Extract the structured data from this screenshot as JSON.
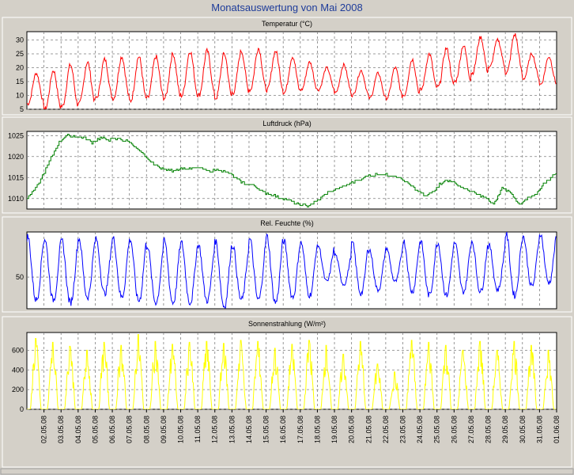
{
  "title": "Monatsauswertung von Mai 2008",
  "colors": {
    "background": "#d4d0c8",
    "plot_area": "#ffffff",
    "title": "#1e3c9a",
    "grid": "#7f7f7f",
    "temperature": "#ff0000",
    "pressure": "#008000",
    "humidity": "#0000ff",
    "radiation": "#ffff00"
  },
  "x_axis": {
    "tick_labels": [
      "02.05.08",
      "03.05.08",
      "04.05.08",
      "05.05.08",
      "06.05.08",
      "07.05.08",
      "08.05.08",
      "09.05.08",
      "10.05.08",
      "11.05.08",
      "12.05.08",
      "13.05.08",
      "14.05.08",
      "15.05.08",
      "16.05.08",
      "17.05.08",
      "18.05.08",
      "19.05.08",
      "20.05.08",
      "21.05.08",
      "22.05.08",
      "23.05.08",
      "24.05.08",
      "25.05.08",
      "26.05.08",
      "27.05.08",
      "28.05.08",
      "29.05.08",
      "30.05.08",
      "31.05.08",
      "01.06.08"
    ]
  },
  "chart_data": [
    {
      "type": "line",
      "title": "Temperatur (°C)",
      "x_unit": "days",
      "y_ticks": [
        5,
        10,
        15,
        20,
        25,
        30
      ],
      "ylim": [
        5,
        33
      ],
      "grid": true,
      "daily_min": [
        7,
        5,
        6,
        7,
        9,
        9,
        8,
        9,
        9,
        10,
        10,
        9,
        11,
        12,
        12,
        11,
        12,
        12,
        11,
        10,
        9,
        9,
        10,
        12,
        13,
        15,
        18,
        20,
        18,
        16,
        14
      ],
      "daily_max": [
        18,
        19,
        21,
        22,
        23,
        24,
        24,
        24,
        25,
        26,
        26,
        25,
        26,
        27,
        26,
        24,
        22,
        20,
        21,
        19,
        18,
        20,
        23,
        25,
        27,
        28,
        31,
        30,
        32,
        25,
        24
      ],
      "series": [
        {
          "name": "Temperatur",
          "color": "#ff0000"
        }
      ]
    },
    {
      "type": "line",
      "title": "Luftdruck (hPa)",
      "x_unit": "days",
      "y_ticks": [
        1010,
        1015,
        1020,
        1025
      ],
      "ylim": [
        1007.5,
        1026
      ],
      "grid": true,
      "x": [
        0,
        0.6,
        1.2,
        1.8,
        2.3,
        2.8,
        3.3,
        3.8,
        4.3,
        4.8,
        5.4,
        6.0,
        6.4,
        7.0,
        7.5,
        8.0,
        8.5,
        9.0,
        9.5,
        10.0,
        10.6,
        11.2,
        11.8,
        12.4,
        12.8,
        13.4,
        13.8,
        14.3,
        14.8,
        15.4,
        15.9,
        16.4,
        17.0,
        17.6,
        18.3,
        18.8,
        19.4,
        20.0,
        20.6,
        21.2,
        21.7,
        22.3,
        22.8,
        23.3,
        23.8,
        24.3,
        24.8,
        25.3,
        25.8,
        26.3,
        26.8,
        27.3,
        27.8,
        28.3,
        28.8,
        29.3,
        29.8,
        30.3,
        31.0
      ],
      "values": [
        1010,
        1013,
        1018,
        1023,
        1025,
        1024.8,
        1024.5,
        1023.3,
        1024.5,
        1024,
        1024.2,
        1023.5,
        1022,
        1019.5,
        1018,
        1017,
        1016.7,
        1017.2,
        1017,
        1017.3,
        1016.5,
        1016.9,
        1016,
        1014.3,
        1013.5,
        1012.8,
        1011.5,
        1011,
        1010.2,
        1009.5,
        1008.5,
        1008.3,
        1009.5,
        1011.5,
        1012.5,
        1013.5,
        1014.5,
        1015.5,
        1015.8,
        1015.5,
        1015.2,
        1013.5,
        1012,
        1010.5,
        1012,
        1014,
        1014.2,
        1013,
        1012,
        1011,
        1010.3,
        1008.5,
        1012.5,
        1011.5,
        1008.5,
        1010,
        1011,
        1014,
        1016
      ],
      "series": [
        {
          "name": "Luftdruck",
          "color": "#008000"
        }
      ]
    },
    {
      "type": "line",
      "title": "Rel. Feuchte (%)",
      "x_unit": "days",
      "y_ticks": [
        50
      ],
      "ylim": [
        15,
        100
      ],
      "grid": true,
      "daily_min": [
        25,
        25,
        22,
        28,
        32,
        28,
        24,
        22,
        22,
        22,
        24,
        18,
        25,
        25,
        22,
        28,
        30,
        45,
        42,
        32,
        36,
        45,
        34,
        30,
        30,
        34,
        34,
        36,
        30,
        40,
        44
      ],
      "daily_max": [
        95,
        92,
        90,
        93,
        92,
        93,
        92,
        85,
        90,
        88,
        86,
        90,
        85,
        92,
        95,
        90,
        88,
        85,
        75,
        88,
        80,
        82,
        90,
        90,
        88,
        88,
        90,
        85,
        98,
        95,
        98
      ],
      "series": [
        {
          "name": "Rel. Feuchte",
          "color": "#0000ff"
        }
      ]
    },
    {
      "type": "line",
      "title": "Sonnenstrahlung (W/m²)",
      "x_unit": "days",
      "y_ticks": [
        0,
        200,
        400,
        600
      ],
      "ylim": [
        0,
        780
      ],
      "grid": true,
      "daily_peak": [
        720,
        680,
        640,
        600,
        680,
        650,
        760,
        690,
        660,
        680,
        690,
        670,
        700,
        690,
        620,
        660,
        700,
        650,
        560,
        690,
        460,
        380,
        700,
        680,
        650,
        600,
        690,
        600,
        690,
        650,
        600
      ],
      "series": [
        {
          "name": "Sonnenstrahlung",
          "color": "#ffff00"
        }
      ]
    }
  ]
}
